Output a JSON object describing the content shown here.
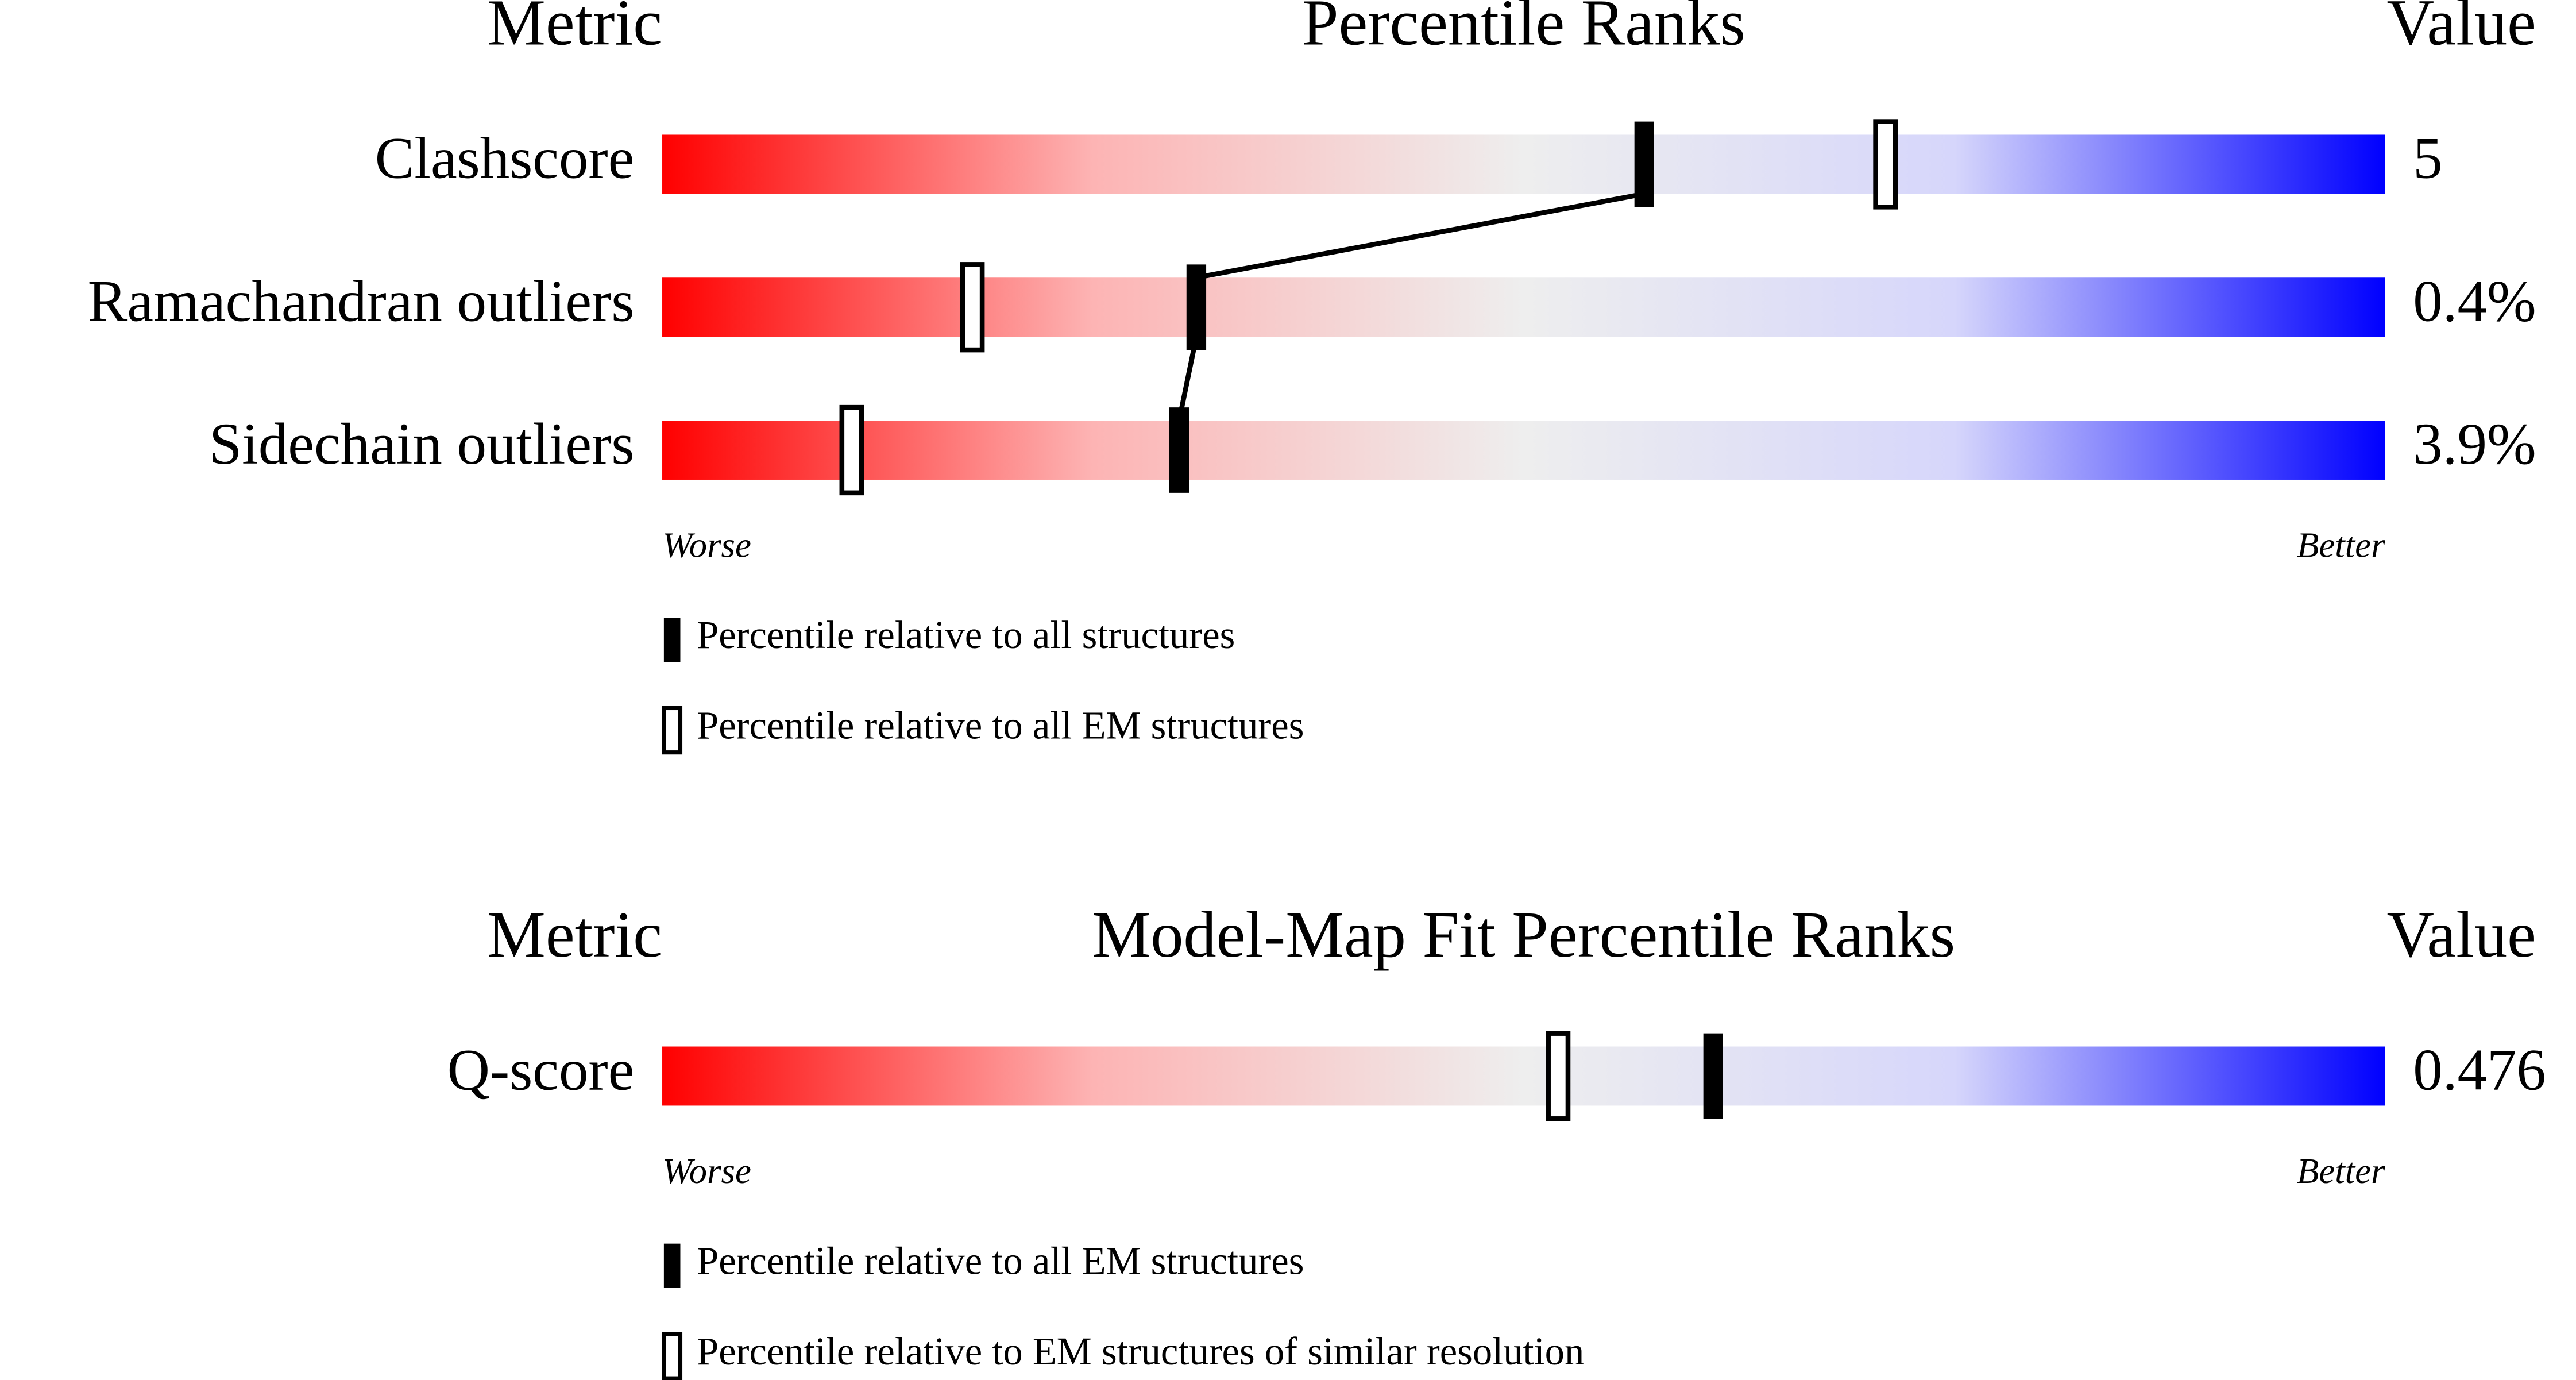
{
  "chart_data": [
    {
      "type": "percentile-slider",
      "column_labels": [
        "Metric",
        "Percentile Ranks",
        "Value"
      ],
      "categories": [
        "Clashscore",
        "Ramachandran outliers",
        "Sidechain outliers"
      ],
      "metric_values": [
        "5",
        "0.4%",
        "3.9%"
      ],
      "series": [
        {
          "name": "Percentile relative to all structures",
          "style": "filled",
          "color": "#000000",
          "values": [
            57,
            31,
            30
          ]
        },
        {
          "name": "Percentile relative to all EM structures",
          "style": "open",
          "color": "#000000",
          "values": [
            71,
            18,
            11
          ]
        }
      ],
      "xlim": [
        0,
        100
      ],
      "end_labels": [
        "Worse",
        "Better"
      ],
      "gradient": [
        "#ff0000",
        "#fdb4b4",
        "#eeeeee",
        "#d6d6fb",
        "#0000ff"
      ],
      "connector": true
    },
    {
      "type": "percentile-slider",
      "column_labels": [
        "Metric",
        "Model-Map Fit Percentile Ranks",
        "Value"
      ],
      "categories": [
        "Q-score"
      ],
      "metric_values": [
        "0.476"
      ],
      "series": [
        {
          "name": "Percentile relative to all EM structures",
          "style": "filled",
          "color": "#000000",
          "values": [
            61
          ]
        },
        {
          "name": "Percentile relative to EM structures of similar resolution",
          "style": "open",
          "color": "#000000",
          "values": [
            52
          ]
        }
      ],
      "xlim": [
        0,
        100
      ],
      "end_labels": [
        "Worse",
        "Better"
      ],
      "gradient": [
        "#ff0000",
        "#fdb4b4",
        "#eeeeee",
        "#d6d6fb",
        "#0000ff"
      ],
      "connector": false
    }
  ]
}
